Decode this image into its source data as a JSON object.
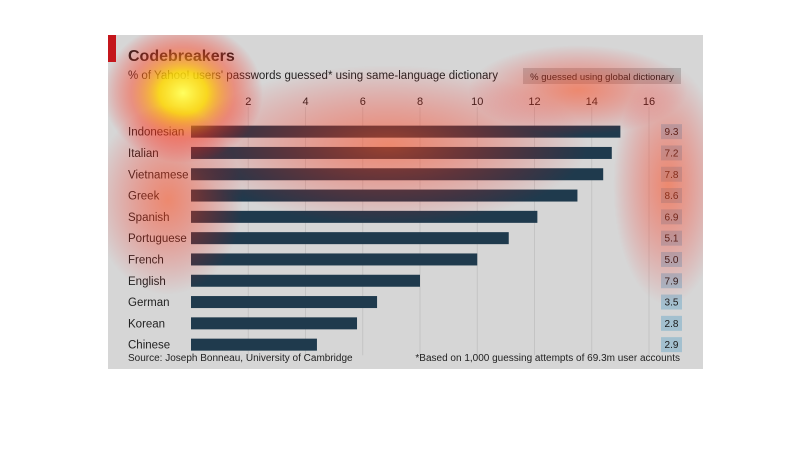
{
  "chart_data": {
    "type": "bar",
    "orientation": "horizontal",
    "title": "Codebreakers",
    "subtitle": "% of Yahoo! users' passwords guessed* using same-language dictionary",
    "categories": [
      "Indonesian",
      "Italian",
      "Vietnamese",
      "Greek",
      "Spanish",
      "Portuguese",
      "French",
      "English",
      "German",
      "Korean",
      "Chinese"
    ],
    "series": [
      {
        "values": [
          15.0,
          14.7,
          14.4,
          13.5,
          12.1,
          11.1,
          10.0,
          8.0,
          6.5,
          5.8,
          4.4
        ]
      }
    ],
    "xlim": [
      0,
      16
    ],
    "xticks": [
      "2",
      "4",
      "6",
      "8",
      "10",
      "12",
      "14",
      "16"
    ],
    "grid": true,
    "side_column": {
      "label": "% guessed using global dictionary",
      "values": [
        "9.3",
        "7.2",
        "7.8",
        "8.6",
        "6.9",
        "5.1",
        "5.0",
        "7.9",
        "3.5",
        "2.8",
        "2.9"
      ]
    },
    "source": "Source: Joseph Bonneau, University of Cambridge",
    "footnote": "*Based on 1,000 guessing attempts of 69.3m user accounts",
    "colors": {
      "bar": "#1f3a4d",
      "background": "#d6d6d6",
      "accent": "#c4161c",
      "side_box": "#a3c0cf"
    }
  }
}
